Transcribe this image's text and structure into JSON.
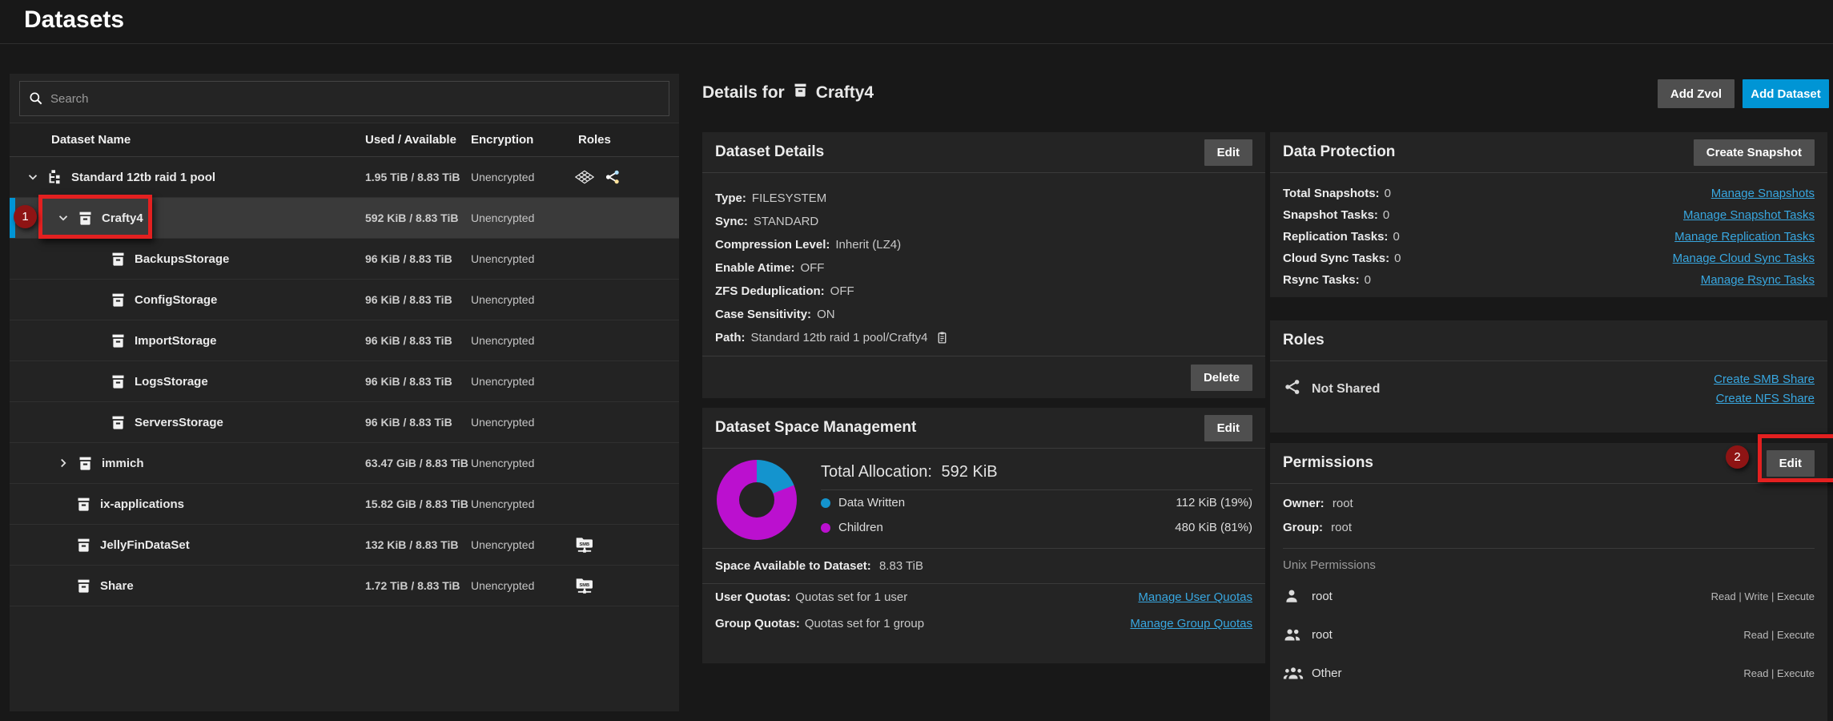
{
  "page": {
    "title": "Datasets"
  },
  "toolbar": {
    "add_zvol_label": "Add Zvol",
    "add_dataset_label": "Add Dataset"
  },
  "tree": {
    "search_placeholder": "Search",
    "columns": {
      "name": "Dataset Name",
      "used": "Used / Available",
      "encryption": "Encryption",
      "roles": "Roles"
    },
    "rows": [
      {
        "name": "Standard 12tb raid 1 pool",
        "used": "1.95 TiB / 8.83 TiB",
        "encryption": "Unencrypted",
        "level": 1,
        "expanded": "open",
        "icon": "pool",
        "roles": [
          "apps",
          "share"
        ],
        "selected": false
      },
      {
        "name": "Crafty4",
        "used": "592 KiB / 8.83 TiB",
        "encryption": "Unencrypted",
        "level": 2,
        "expanded": "open",
        "icon": "dataset",
        "roles": [],
        "selected": true,
        "annotation": "1"
      },
      {
        "name": "BackupsStorage",
        "used": "96 KiB / 8.83 TiB",
        "encryption": "Unencrypted",
        "level": 3,
        "expanded": null,
        "icon": "dataset",
        "roles": [],
        "selected": false
      },
      {
        "name": "ConfigStorage",
        "used": "96 KiB / 8.83 TiB",
        "encryption": "Unencrypted",
        "level": 3,
        "expanded": null,
        "icon": "dataset",
        "roles": [],
        "selected": false
      },
      {
        "name": "ImportStorage",
        "used": "96 KiB / 8.83 TiB",
        "encryption": "Unencrypted",
        "level": 3,
        "expanded": null,
        "icon": "dataset",
        "roles": [],
        "selected": false
      },
      {
        "name": "LogsStorage",
        "used": "96 KiB / 8.83 TiB",
        "encryption": "Unencrypted",
        "level": 3,
        "expanded": null,
        "icon": "dataset",
        "roles": [],
        "selected": false
      },
      {
        "name": "ServersStorage",
        "used": "96 KiB / 8.83 TiB",
        "encryption": "Unencrypted",
        "level": 3,
        "expanded": null,
        "icon": "dataset",
        "roles": [],
        "selected": false
      },
      {
        "name": "immich",
        "used": "63.47 GiB / 8.83 TiB",
        "encryption": "Unencrypted",
        "level": 2,
        "expanded": "closed",
        "icon": "dataset",
        "roles": [],
        "selected": false
      },
      {
        "name": "ix-applications",
        "used": "15.82 GiB / 8.83 TiB",
        "encryption": "Unencrypted",
        "level": 2,
        "expanded": null,
        "icon": "dataset",
        "roles": [],
        "selected": false
      },
      {
        "name": "JellyFinDataSet",
        "used": "132 KiB / 8.83 TiB",
        "encryption": "Unencrypted",
        "level": 2,
        "expanded": null,
        "icon": "dataset",
        "roles": [
          "smb"
        ],
        "selected": false
      },
      {
        "name": "Share",
        "used": "1.72 TiB / 8.83 TiB",
        "encryption": "Unencrypted",
        "level": 2,
        "expanded": null,
        "icon": "dataset",
        "roles": [
          "smb"
        ],
        "selected": false
      }
    ]
  },
  "details_header": {
    "prefix": "Details for",
    "name": "Crafty4"
  },
  "dataset_details": {
    "title": "Dataset Details",
    "edit_label": "Edit",
    "delete_label": "Delete",
    "fields": [
      {
        "label": "Type:",
        "value": "FILESYSTEM"
      },
      {
        "label": "Sync:",
        "value": "STANDARD"
      },
      {
        "label": "Compression Level:",
        "value": "Inherit (LZ4)"
      },
      {
        "label": "Enable Atime:",
        "value": "OFF"
      },
      {
        "label": "ZFS Deduplication:",
        "value": "OFF"
      },
      {
        "label": "Case Sensitivity:",
        "value": "ON"
      },
      {
        "label": "Path:",
        "value": "Standard 12tb raid 1 pool/Crafty4",
        "copy_icon": true
      }
    ]
  },
  "space": {
    "title": "Dataset Space Management",
    "edit_label": "Edit",
    "total_label": "Total Allocation:",
    "total_value": "592 KiB",
    "available_label": "Space Available to Dataset:",
    "available_value": "8.83 TiB",
    "quotas": [
      {
        "label": "User Quotas:",
        "value": "Quotas set for 1 user",
        "link": "Manage User Quotas"
      },
      {
        "label": "Group Quotas:",
        "value": "Quotas set for 1 group",
        "link": "Manage Group Quotas"
      }
    ]
  },
  "chart_data": {
    "type": "pie",
    "title": "Dataset Space Management donut",
    "categories": [
      "Data Written",
      "Children"
    ],
    "values_pct": [
      19,
      81
    ],
    "values_label": [
      "112 KiB (19%)",
      "480 KiB (81%)"
    ],
    "colors": [
      "#1494ce",
      "#bb10cf"
    ],
    "total_label": "Total Allocation: 592 KiB"
  },
  "protection": {
    "title": "Data Protection",
    "button_label": "Create Snapshot",
    "rows": [
      {
        "label": "Total Snapshots:",
        "value": "0",
        "link": "Manage Snapshots"
      },
      {
        "label": "Snapshot Tasks:",
        "value": "0",
        "link": "Manage Snapshot Tasks"
      },
      {
        "label": "Replication Tasks:",
        "value": "0",
        "link": "Manage Replication Tasks"
      },
      {
        "label": "Cloud Sync Tasks:",
        "value": "0",
        "link": "Manage Cloud Sync Tasks"
      },
      {
        "label": "Rsync Tasks:",
        "value": "0",
        "link": "Manage Rsync Tasks"
      }
    ]
  },
  "roles_card": {
    "title": "Roles",
    "status": "Not Shared",
    "links": [
      "Create SMB Share",
      "Create NFS Share"
    ]
  },
  "permissions": {
    "title": "Permissions",
    "edit_label": "Edit",
    "owner_label": "Owner:",
    "owner_value": "root",
    "group_label": "Group:",
    "group_value": "root",
    "section_title": "Unix Permissions",
    "entries": [
      {
        "icon": "person",
        "name": "root",
        "perms": "Read | Write | Execute"
      },
      {
        "icon": "people",
        "name": "root",
        "perms": "Read | Execute"
      },
      {
        "icon": "group",
        "name": "Other",
        "perms": "Read | Execute"
      }
    ]
  },
  "annotations": {
    "step1": "1",
    "step2": "2"
  },
  "colors": {
    "accent_blue": "#0095d5",
    "link_blue": "#38a7e0",
    "donut_blue": "#1494ce",
    "donut_magenta": "#bb10cf",
    "annotation_red": "#e32020",
    "annotation_circle_red": "#8e1414",
    "selected_row": "#3a3a3a"
  }
}
